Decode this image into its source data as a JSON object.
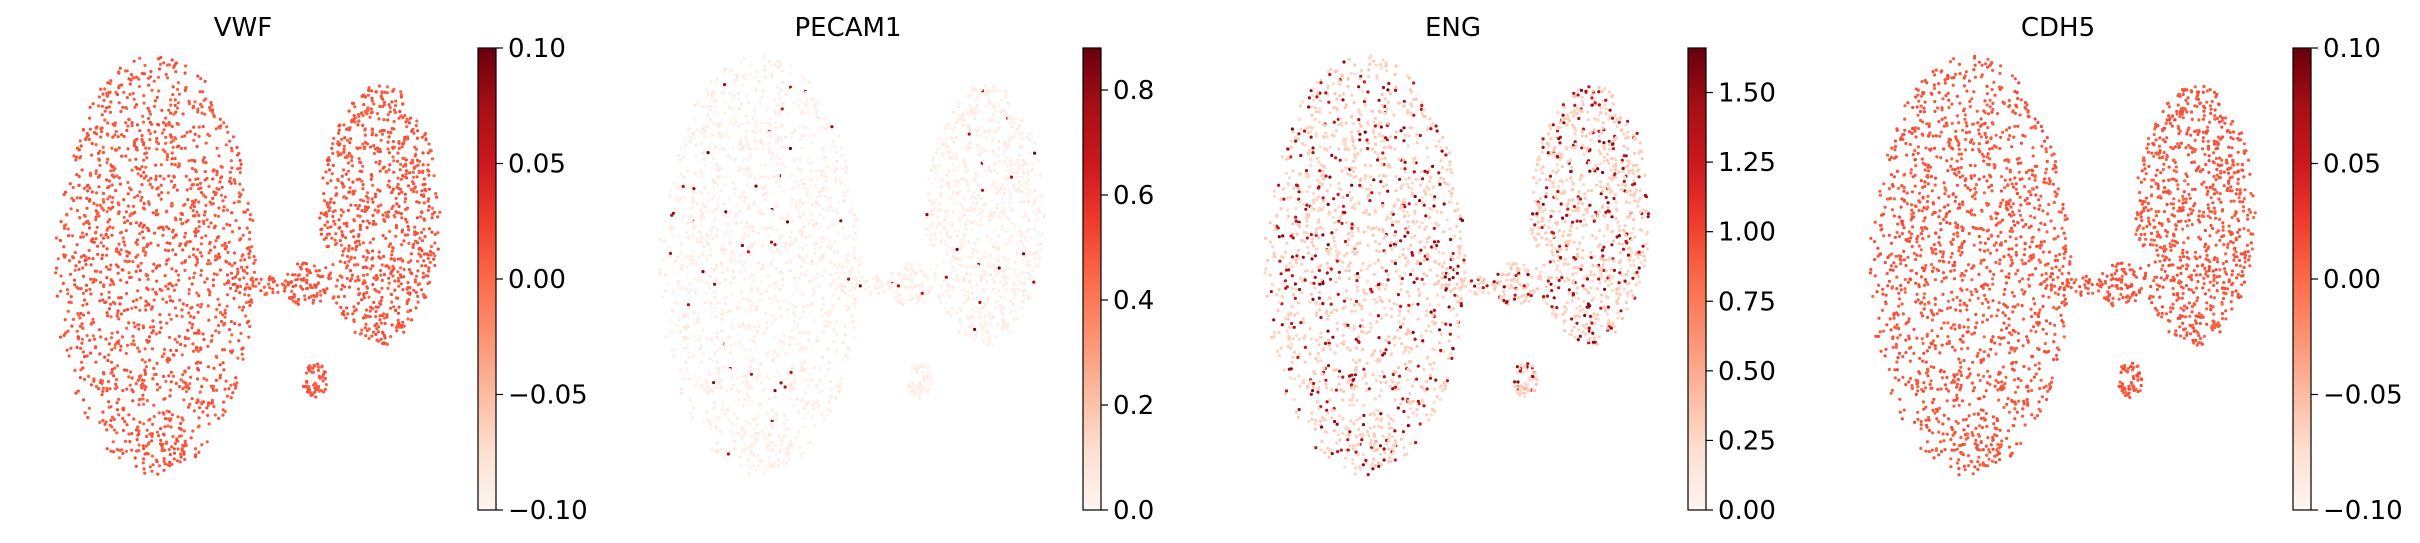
{
  "chart_data": [
    {
      "type": "scatter",
      "title": "VWF",
      "colormap": "Reds",
      "colorbar": {
        "range": [
          -0.1,
          0.1
        ],
        "ticks": [
          "0.10",
          "0.05",
          "0.00",
          "−0.05",
          "−0.10"
        ],
        "tick_values": [
          0.1,
          0.05,
          0.0,
          -0.05,
          -0.1
        ]
      },
      "expression": {
        "base": 0.55,
        "sparse_fraction": 0.0,
        "sparse_level": 0.55
      }
    },
    {
      "type": "scatter",
      "title": "PECAM1",
      "colormap": "Reds",
      "colorbar": {
        "range": [
          0.0,
          0.88
        ],
        "ticks": [
          "0.8",
          "0.6",
          "0.4",
          "0.2",
          "0.0"
        ],
        "tick_values": [
          0.8,
          0.6,
          0.4,
          0.2,
          0.0
        ]
      },
      "expression": {
        "base": 0.04,
        "sparse_fraction": 0.02,
        "sparse_level": 0.8
      }
    },
    {
      "type": "scatter",
      "title": "ENG",
      "colormap": "Reds",
      "colorbar": {
        "range": [
          0.0,
          1.66
        ],
        "ticks": [
          "1.50",
          "1.25",
          "1.00",
          "0.75",
          "0.50",
          "0.25",
          "0.00"
        ],
        "tick_values": [
          1.5,
          1.25,
          1.0,
          0.75,
          0.5,
          0.25,
          0.0
        ]
      },
      "expression": {
        "base": 0.18,
        "sparse_fraction": 0.22,
        "sparse_level": 0.75
      }
    },
    {
      "type": "scatter",
      "title": "CDH5",
      "colormap": "Reds",
      "colorbar": {
        "range": [
          -0.1,
          0.1
        ],
        "ticks": [
          "0.10",
          "0.05",
          "0.00",
          "−0.05",
          "−0.10"
        ],
        "tick_values": [
          0.1,
          0.05,
          0.0,
          -0.05,
          -0.1
        ]
      },
      "expression": {
        "base": 0.55,
        "sparse_fraction": 0.0,
        "sparse_level": 0.55
      }
    }
  ],
  "colors": {
    "reds_colormap": [
      "#fff5f0",
      "#fee0d2",
      "#fcbba1",
      "#fc9272",
      "#fb6a4a",
      "#ef3b2c",
      "#cb181d",
      "#a50f15",
      "#67000d"
    ],
    "axis": "#000000"
  }
}
